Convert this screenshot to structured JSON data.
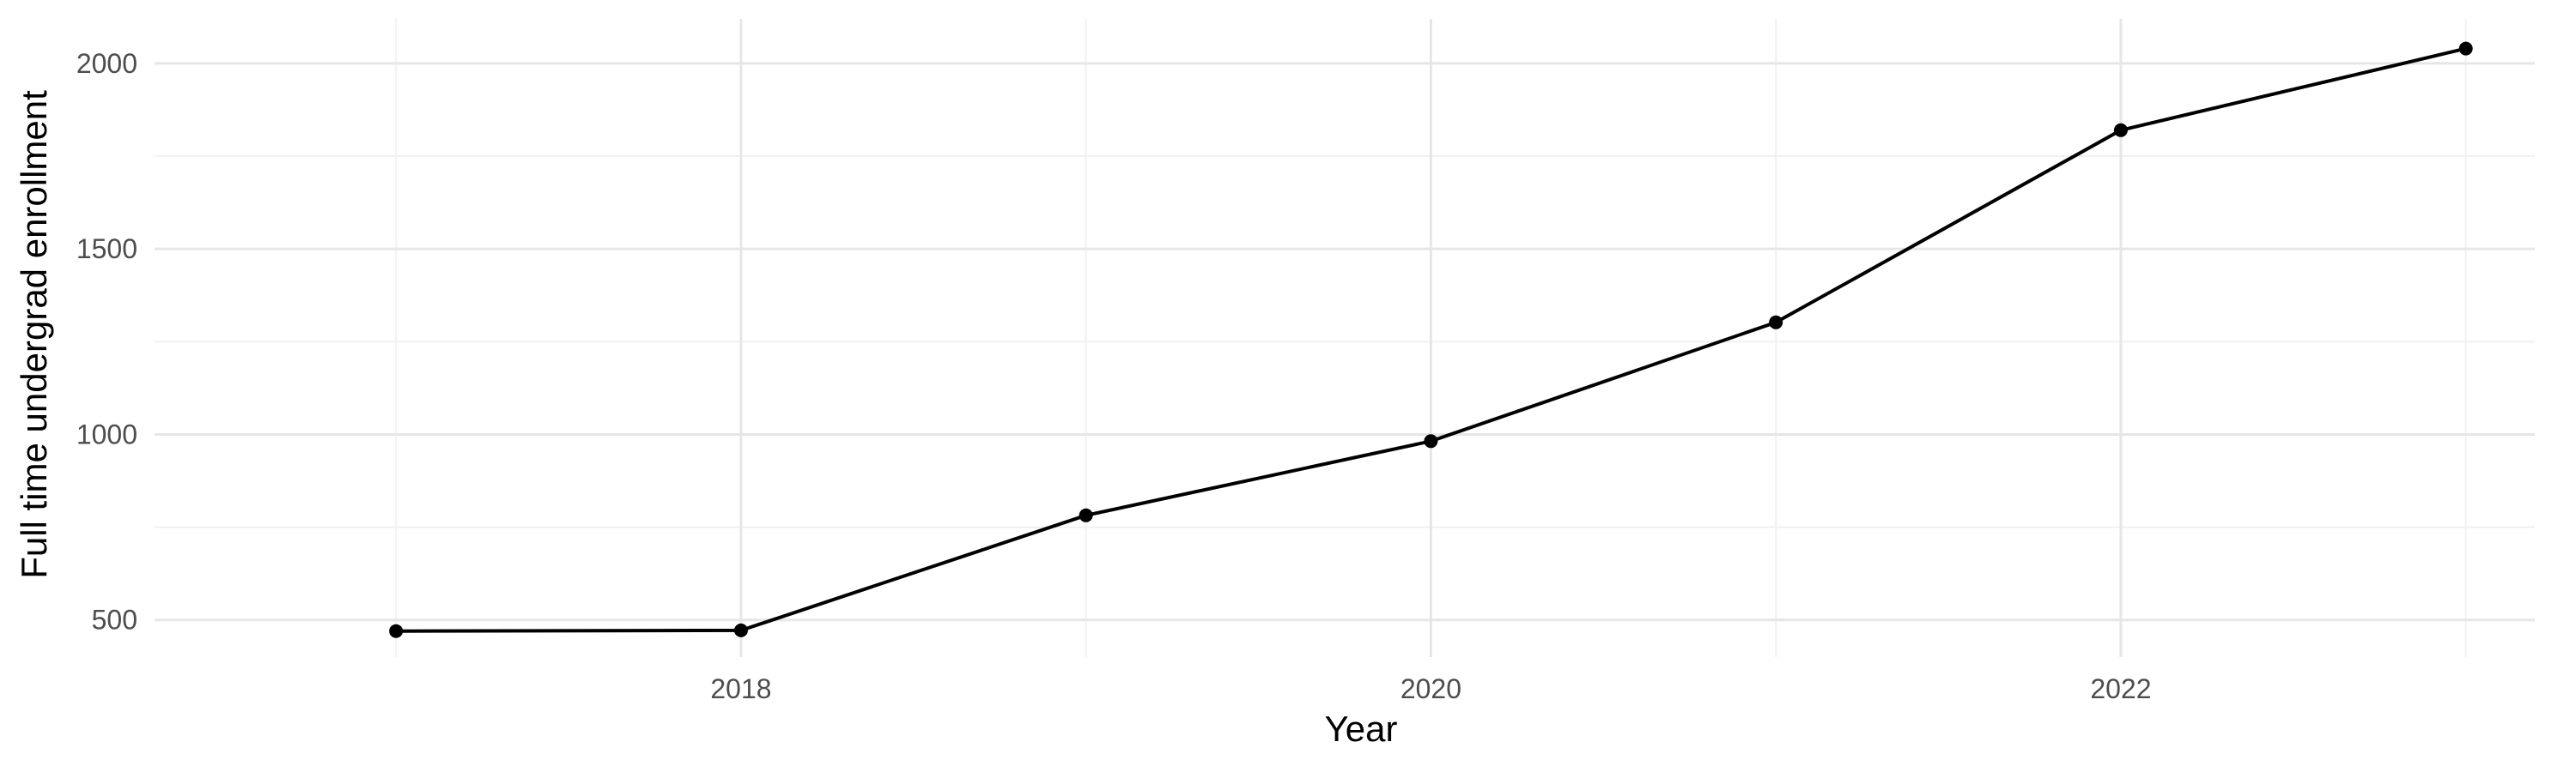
{
  "chart_data": {
    "type": "line",
    "title": "",
    "xlabel": "Year",
    "ylabel": "Full time undergrad enrollment",
    "x": [
      2017,
      2018,
      2019,
      2020,
      2021,
      2022,
      2023
    ],
    "series": [
      {
        "values": [
          470,
          472,
          782,
          982,
          1302,
          1820,
          2040
        ],
        "color": "#000000",
        "marker": "circle"
      }
    ],
    "xlim": [
      2016.3,
      2023.2
    ],
    "ylim": [
      400,
      2120
    ],
    "x_ticks": [
      2018,
      2020,
      2022
    ],
    "x_tick_labels": [
      "2018",
      "2020",
      "2022"
    ],
    "x_minor_ticks": [
      2017,
      2019,
      2021,
      2023
    ],
    "y_ticks": [
      500,
      1000,
      1500,
      2000
    ],
    "y_tick_labels": [
      "500",
      "1000",
      "1500",
      "2000"
    ],
    "y_minor_ticks": [
      750,
      1250,
      1750
    ],
    "grid": true,
    "legend": "none",
    "background": "#ffffff",
    "grid_color": "#e6e6e6"
  }
}
